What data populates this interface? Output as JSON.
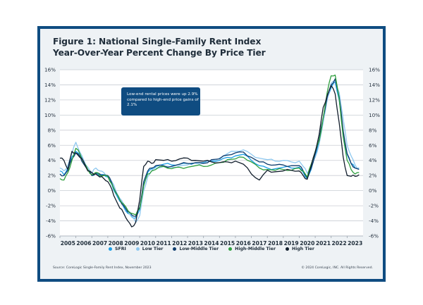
{
  "figure": {
    "title_line1": "Figure 1: National Single-Family Rent Index",
    "title_line2": "Year-Over-Year Percent Change By Price Tier",
    "callout": "Low-end rental prices were up 2.9% compared to high-end price gains of 2.1%",
    "source": "Source: CoreLogic Single-Family Rent Index, November 2023",
    "copyright": "© 2024 CoreLogic, INC. All Rights Reserved."
  },
  "chart_data": {
    "type": "line",
    "title": "Figure 1: National Single-Family Rent Index Year-Over-Year Percent Change By Price Tier",
    "xlabel": "",
    "ylabel": "",
    "xlim": [
      2005.0,
      2024.0
    ],
    "ylim": [
      -6,
      16
    ],
    "y_ticks": [
      16,
      14,
      12,
      10,
      8,
      6,
      4,
      2,
      0,
      -2,
      -4,
      -6
    ],
    "y_tick_labels": [
      "16%",
      "14%",
      "12%",
      "10%",
      "8%",
      "6%",
      "4%",
      "2%",
      "0%",
      "-2%",
      "-4%",
      "-6%"
    ],
    "x_ticks": [
      "2005",
      "2006",
      "2007",
      "2008",
      "2009",
      "2010",
      "2011",
      "2012",
      "2013",
      "2014",
      "2015",
      "2016",
      "2017",
      "2018",
      "2019",
      "2020",
      "2021",
      "2022",
      "2023"
    ],
    "grid": true,
    "dual_y_axis": true,
    "legend_position": "bottom",
    "x": [
      2005.0,
      2005.25,
      2005.5,
      2005.75,
      2006.0,
      2006.25,
      2006.5,
      2006.75,
      2007.0,
      2007.25,
      2007.5,
      2007.75,
      2008.0,
      2008.25,
      2008.5,
      2008.75,
      2009.0,
      2009.25,
      2009.5,
      2009.75,
      2010.0,
      2010.25,
      2010.5,
      2010.75,
      2011.0,
      2011.5,
      2012.0,
      2012.5,
      2013.0,
      2013.5,
      2014.0,
      2014.5,
      2015.0,
      2015.5,
      2016.0,
      2016.5,
      2017.0,
      2017.5,
      2018.0,
      2018.5,
      2019.0,
      2019.5,
      2020.0,
      2020.25,
      2020.5,
      2020.75,
      2021.0,
      2021.25,
      2021.5,
      2021.75,
      2022.0,
      2022.25,
      2022.5,
      2022.75,
      2023.0,
      2023.25,
      2023.5,
      2023.75
    ],
    "series": [
      {
        "name": "SFRI",
        "color": "#1a9ee6",
        "values": [
          2.6,
          2.1,
          3.0,
          4.5,
          5.2,
          4.8,
          3.6,
          2.8,
          2.0,
          2.4,
          1.9,
          2.1,
          1.8,
          0.8,
          -0.4,
          -1.4,
          -2.2,
          -3.0,
          -3.4,
          -3.6,
          -2.5,
          0.8,
          2.4,
          2.9,
          3.2,
          3.5,
          3.4,
          3.5,
          3.6,
          3.7,
          3.7,
          3.9,
          4.0,
          4.4,
          4.6,
          4.8,
          4.0,
          3.3,
          3.0,
          2.9,
          3.1,
          3.0,
          3.1,
          2.4,
          1.6,
          2.8,
          4.6,
          6.5,
          9.2,
          12.2,
          13.6,
          14.4,
          12.0,
          7.8,
          4.8,
          3.6,
          3.0,
          3.0
        ]
      },
      {
        "name": "Low Tier",
        "color": "#8ec8f0",
        "values": [
          3.0,
          2.6,
          3.4,
          4.9,
          6.4,
          5.1,
          4.0,
          3.1,
          2.3,
          3.0,
          2.6,
          2.4,
          2.0,
          1.2,
          0.0,
          -1.0,
          -1.8,
          -2.8,
          -3.5,
          -4.2,
          -3.3,
          0.0,
          1.8,
          2.6,
          3.0,
          3.2,
          3.1,
          3.3,
          3.4,
          3.6,
          3.6,
          4.0,
          4.3,
          4.9,
          5.2,
          5.4,
          4.8,
          4.3,
          4.1,
          3.9,
          4.0,
          3.8,
          3.9,
          3.2,
          2.3,
          3.3,
          4.4,
          6.2,
          9.0,
          12.0,
          14.2,
          14.6,
          13.0,
          9.5,
          6.0,
          4.6,
          3.4,
          2.9
        ]
      },
      {
        "name": "Low-Middle Tier",
        "color": "#0f3d6e",
        "values": [
          2.2,
          2.0,
          2.7,
          4.2,
          5.0,
          4.6,
          3.5,
          2.7,
          2.0,
          2.3,
          2.2,
          2.1,
          2.0,
          1.0,
          -0.2,
          -1.2,
          -2.0,
          -2.8,
          -3.2,
          -3.4,
          -2.2,
          1.2,
          2.6,
          3.0,
          3.3,
          3.3,
          3.2,
          3.5,
          3.6,
          3.7,
          3.6,
          4.1,
          4.2,
          4.7,
          5.0,
          5.1,
          4.4,
          3.8,
          3.5,
          3.4,
          3.4,
          3.3,
          3.3,
          2.6,
          1.7,
          3.0,
          4.9,
          6.8,
          9.6,
          12.4,
          14.0,
          14.8,
          12.4,
          8.0,
          4.9,
          3.6,
          3.0,
          2.8
        ]
      },
      {
        "name": "High-Middle Tier",
        "color": "#2e9e3e",
        "values": [
          1.6,
          1.4,
          2.4,
          4.0,
          5.6,
          4.9,
          3.7,
          2.8,
          2.1,
          2.4,
          2.0,
          2.0,
          1.9,
          0.9,
          -0.3,
          -1.2,
          -1.8,
          -2.6,
          -3.0,
          -3.2,
          -2.4,
          0.6,
          2.2,
          2.6,
          2.8,
          3.2,
          2.9,
          3.1,
          3.1,
          3.3,
          3.2,
          3.4,
          3.7,
          4.1,
          4.2,
          4.4,
          3.8,
          3.0,
          2.8,
          2.7,
          2.8,
          2.7,
          3.0,
          2.6,
          1.8,
          3.5,
          5.2,
          6.6,
          9.6,
          13.0,
          15.2,
          15.3,
          12.2,
          7.2,
          4.0,
          2.8,
          2.2,
          2.4
        ]
      },
      {
        "name": "High Tier",
        "color": "#121e2c",
        "values": [
          4.3,
          4.0,
          2.8,
          5.2,
          5.0,
          4.4,
          3.8,
          2.6,
          2.4,
          2.2,
          1.8,
          1.6,
          1.2,
          0.2,
          -1.2,
          -2.3,
          -3.0,
          -4.0,
          -4.8,
          -4.2,
          -1.2,
          3.2,
          3.9,
          3.6,
          4.1,
          4.0,
          3.9,
          4.2,
          4.3,
          4.0,
          3.9,
          3.8,
          3.7,
          3.8,
          3.9,
          3.5,
          2.2,
          1.4,
          2.7,
          2.5,
          2.6,
          2.7,
          2.6,
          2.0,
          1.5,
          3.3,
          5.1,
          7.5,
          11.0,
          12.6,
          13.9,
          12.8,
          9.0,
          4.5,
          2.0,
          1.9,
          1.9,
          2.1
        ]
      }
    ]
  },
  "legend": {
    "items": [
      {
        "label": "SFRI",
        "color": "#1a9ee6"
      },
      {
        "label": "Low Tier",
        "color": "#8ec8f0"
      },
      {
        "label": "Low-Middle Tier",
        "color": "#0f3d6e"
      },
      {
        "label": "High-Middle Tier",
        "color": "#2e9e3e"
      },
      {
        "label": "High Tier",
        "color": "#121e2c"
      }
    ]
  },
  "theme": {
    "frame_border": "#0f4c81",
    "frame_bg": "#eef2f5",
    "plot_bg": "#ffffff",
    "grid": "#c9ced4",
    "callout_bg": "#0f4c81"
  }
}
